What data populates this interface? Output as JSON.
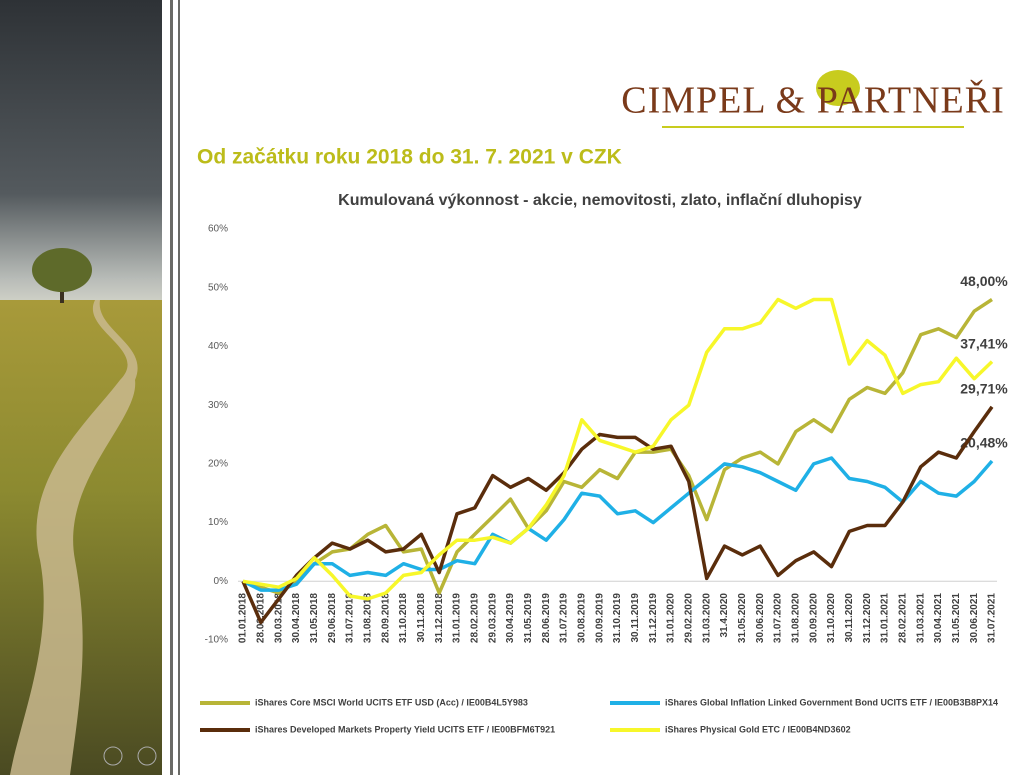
{
  "header": {
    "logo": "CIMPEL & PARTNEŘI",
    "title": "Od začátku roku 2018 do 31. 7.  2021 v CZK"
  },
  "chart_data": {
    "type": "line",
    "title": "Kumulovaná výkonnost - akcie, nemovitosti, zlato, inflační dluhopisy",
    "categories": [
      "01.01.2018",
      "28.02.2018",
      "30.03.2018",
      "30.04.2018",
      "31.05.2018",
      "29.06.2018",
      "31.07.2018",
      "31.08.2018",
      "28.09.2018",
      "31.10.2018",
      "30.11.2018",
      "31.12.2018",
      "31.01.2019",
      "28.02.2019",
      "29.03.2019",
      "30.04.2019",
      "31.05.2019",
      "28.06.2019",
      "31.07.2019",
      "30.08.2019",
      "30.09.2019",
      "31.10.2019",
      "30.11.2019",
      "31.12.2019",
      "31.01.2020",
      "29.02.2020",
      "31.03.2020",
      "31.4.2020",
      "31.05.2020",
      "30.06.2020",
      "31.07.2020",
      "31.08.2020",
      "30.09.2020",
      "31.10.2020",
      "30.11.2020",
      "31.12.2020",
      "31.01.2021",
      "28.02.2021",
      "31.03.2021",
      "30.04.2021",
      "31.05.2021",
      "30.06.2021",
      "31.07.2021"
    ],
    "series": [
      {
        "name": "iShares Core MSCI World UCITS ETF USD (Acc) / IE00B4L5Y983",
        "color": "#b8b537",
        "values": [
          0,
          -1,
          -2,
          0,
          3,
          5,
          5.5,
          8,
          9.5,
          5,
          5.5,
          -2,
          5,
          8,
          11,
          14,
          9,
          12,
          17,
          16,
          19,
          17.5,
          22,
          22,
          22.5,
          18,
          10.5,
          19,
          21,
          22,
          20,
          25.5,
          27.5,
          25.5,
          31,
          33,
          32,
          35.5,
          42,
          43,
          41.5,
          46,
          48
        ],
        "value_labels": [
          null,
          null,
          null,
          null,
          null,
          null,
          null,
          null,
          null,
          null,
          null,
          null,
          null,
          null,
          null,
          null,
          null,
          null,
          null,
          null,
          null,
          null,
          null,
          null,
          null,
          null,
          null,
          null,
          null,
          null,
          null,
          null,
          null,
          null,
          null,
          null,
          null,
          null,
          null,
          null,
          null,
          null,
          "48,00%"
        ]
      },
      {
        "name": "iShares Global Inflation Linked Government Bond UCITS ETF / IE00B3B8PX14",
        "color": "#1fb0e6",
        "values": [
          0,
          -1.5,
          -1.5,
          -0.5,
          3,
          3,
          1,
          1.5,
          1,
          3,
          2,
          2,
          3.5,
          3,
          8,
          6.5,
          9,
          7,
          10.5,
          15,
          14.5,
          11.5,
          12,
          10,
          12.5,
          15,
          17.5,
          20,
          19.5,
          18.5,
          17,
          15.5,
          20,
          21,
          17.5,
          17,
          16,
          13.5,
          17,
          15,
          14.5,
          17,
          20.48
        ],
        "value_labels": [
          null,
          null,
          null,
          null,
          null,
          null,
          null,
          null,
          null,
          null,
          null,
          null,
          null,
          null,
          null,
          null,
          null,
          null,
          null,
          null,
          null,
          null,
          null,
          null,
          null,
          null,
          null,
          null,
          null,
          null,
          null,
          null,
          null,
          null,
          null,
          null,
          null,
          null,
          null,
          null,
          null,
          null,
          "20,48%"
        ]
      },
      {
        "name": "iShares Developed Markets Property Yield UCITS ETF / IE00BFM6T921",
        "color": "#5a2d0c",
        "values": [
          0,
          -7,
          -3,
          1,
          4,
          6.5,
          5.5,
          7,
          5,
          5.5,
          8,
          1.5,
          11.5,
          12.5,
          18,
          16,
          17.5,
          15.5,
          18.5,
          22.5,
          25,
          24.5,
          24.5,
          22.5,
          23,
          17,
          0.5,
          6,
          4.5,
          6,
          1,
          3.5,
          5,
          2.5,
          8.5,
          9.5,
          9.5,
          13.5,
          19.5,
          22,
          21,
          25.5,
          29.71
        ],
        "value_labels": [
          null,
          null,
          null,
          null,
          null,
          null,
          null,
          null,
          null,
          null,
          null,
          null,
          null,
          null,
          null,
          null,
          null,
          null,
          null,
          null,
          null,
          null,
          null,
          null,
          null,
          null,
          null,
          null,
          null,
          null,
          null,
          null,
          null,
          null,
          null,
          null,
          null,
          null,
          null,
          null,
          null,
          null,
          "29,71%"
        ]
      },
      {
        "name": "iShares Physical Gold ETC / IE00B4ND3602",
        "color": "#f7f72a",
        "values": [
          0,
          -0.5,
          -1,
          0.5,
          4,
          1,
          -2.5,
          -3,
          -2,
          1,
          1.5,
          4.5,
          7,
          7,
          7.5,
          6.5,
          9,
          13,
          18,
          27.5,
          24,
          23,
          22,
          23,
          27.5,
          30,
          39,
          43,
          43,
          44,
          48,
          46.5,
          48,
          48,
          37,
          41,
          38.5,
          32,
          33.5,
          34,
          38,
          34.5,
          37.41
        ],
        "value_labels": [
          null,
          null,
          null,
          null,
          null,
          null,
          null,
          null,
          null,
          null,
          null,
          null,
          null,
          null,
          null,
          null,
          null,
          null,
          null,
          null,
          null,
          null,
          null,
          null,
          null,
          null,
          null,
          null,
          null,
          null,
          null,
          null,
          null,
          null,
          null,
          null,
          null,
          null,
          null,
          null,
          null,
          null,
          "37,41%"
        ]
      }
    ],
    "ylim": [
      -10,
      60
    ],
    "yticks": [
      {
        "value": -10,
        "label": "-10%"
      },
      {
        "value": 0,
        "label": "0%"
      },
      {
        "value": 10,
        "label": "10%"
      },
      {
        "value": 20,
        "label": "20%"
      },
      {
        "value": 30,
        "label": "30%"
      },
      {
        "value": 40,
        "label": "40%"
      },
      {
        "value": 50,
        "label": "50%"
      },
      {
        "value": 60,
        "label": "60%"
      }
    ],
    "grid": false
  }
}
